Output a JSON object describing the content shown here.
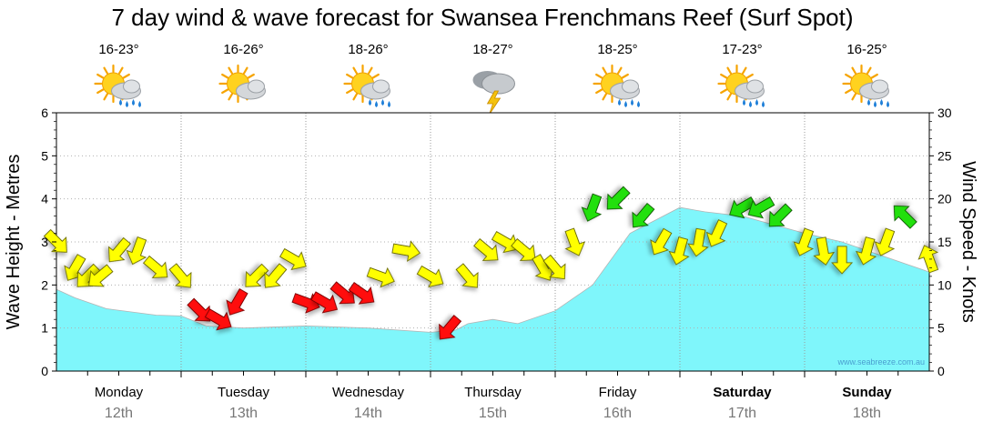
{
  "chart_data": {
    "type": "line",
    "title": "7 day wind & wave forecast for Swansea Frenchmans Reef (Surf Spot)",
    "ylabel_left": "Wave Height - Metres",
    "ylabel_right": "Wind Speed - Knots",
    "ylim_left": [
      0,
      6
    ],
    "ylim_right": [
      0,
      30
    ],
    "yticks_left": [
      "0",
      "1",
      "2",
      "3",
      "4",
      "5",
      "6"
    ],
    "yticks_right": [
      "0",
      "5",
      "10",
      "15",
      "20",
      "25",
      "30"
    ],
    "watermark": "www.seabreeze.com.au",
    "days": [
      {
        "name": "Monday",
        "date": "12th",
        "temp": "16-23°",
        "icon": "partly-cloudy-rain-icon",
        "bold": false
      },
      {
        "name": "Tuesday",
        "date": "13th",
        "temp": "16-26°",
        "icon": "partly-cloudy-icon",
        "bold": false
      },
      {
        "name": "Wednesday",
        "date": "14th",
        "temp": "18-26°",
        "icon": "partly-cloudy-rain-icon",
        "bold": false
      },
      {
        "name": "Thursday",
        "date": "15th",
        "temp": "18-27°",
        "icon": "thunderstorm-icon",
        "bold": false
      },
      {
        "name": "Friday",
        "date": "16th",
        "temp": "18-25°",
        "icon": "partly-cloudy-rain-icon",
        "bold": false
      },
      {
        "name": "Saturday",
        "date": "17th",
        "temp": "17-23°",
        "icon": "partly-cloudy-rain-icon",
        "bold": true
      },
      {
        "name": "Sunday",
        "date": "18th",
        "temp": "16-25°",
        "icon": "partly-cloudy-rain-icon",
        "bold": true
      }
    ],
    "wave_series": {
      "name": "Wave Height",
      "unit": "m",
      "x_days": [
        0,
        0.15,
        0.4,
        0.8,
        1.0,
        1.2,
        1.5,
        2.0,
        2.5,
        3.0,
        3.2,
        3.3,
        3.5,
        3.7,
        4.0,
        4.3,
        4.6,
        5.0,
        5.2,
        5.5,
        6.0,
        6.3,
        6.5,
        7.0
      ],
      "values": [
        1.9,
        1.7,
        1.45,
        1.3,
        1.28,
        1.05,
        1.0,
        1.05,
        1.0,
        0.9,
        0.95,
        1.1,
        1.2,
        1.1,
        1.4,
        2.0,
        3.2,
        3.8,
        3.7,
        3.6,
        3.2,
        3.0,
        2.8,
        2.3
      ]
    },
    "wind_series": {
      "name": "Wind Speed",
      "unit": "knots",
      "x_days": [
        0,
        0.15,
        0.25,
        0.35,
        0.5,
        0.65,
        0.8,
        1.0,
        1.15,
        1.3,
        1.45,
        1.6,
        1.75,
        1.9,
        2.0,
        2.15,
        2.3,
        2.45,
        2.6,
        2.8,
        3.0,
        3.15,
        3.3,
        3.45,
        3.6,
        3.75,
        3.9,
        4.0,
        4.15,
        4.3,
        4.5,
        4.7,
        4.85,
        5.0,
        5.15,
        5.3,
        5.5,
        5.65,
        5.8,
        6.0,
        6.15,
        6.3,
        6.5,
        6.65,
        6.8,
        7.0
      ],
      "speeds": [
        15,
        12,
        11,
        11,
        14,
        14,
        12,
        11,
        7,
        6,
        8,
        11,
        11,
        13,
        8,
        8,
        9,
        9,
        11,
        14,
        11,
        5,
        11,
        14,
        15,
        14,
        12,
        12,
        15,
        19,
        20,
        18,
        15,
        14,
        15,
        16,
        19,
        19,
        18,
        15,
        14,
        13,
        14,
        15,
        18,
        13
      ],
      "directions_deg": [
        315,
        30,
        45,
        50,
        40,
        20,
        310,
        320,
        315,
        300,
        30,
        45,
        40,
        300,
        290,
        300,
        310,
        305,
        290,
        280,
        300,
        40,
        320,
        310,
        300,
        310,
        330,
        320,
        340,
        20,
        45,
        40,
        30,
        15,
        10,
        25,
        60,
        60,
        45,
        20,
        350,
        0,
        15,
        20,
        135,
        160
      ]
    }
  }
}
